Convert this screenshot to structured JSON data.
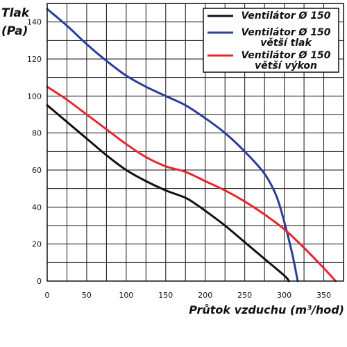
{
  "chart_data": {
    "type": "line",
    "ylabel_line1": "Tlak",
    "ylabel_line2": "(Pa)",
    "xlabel": "Průtok vzduchu (m³/hod)",
    "xlim": [
      0,
      375
    ],
    "ylim": [
      0,
      150
    ],
    "x_ticks": [
      "0",
      "50",
      "100",
      "150",
      "200",
      "250",
      "300",
      "350"
    ],
    "y_ticks": [
      "0",
      "20",
      "40",
      "60",
      "80",
      "100",
      "120",
      "140"
    ],
    "grid": true,
    "legend_position": "top-right",
    "series": [
      {
        "name_lines": [
          "Ventilátor Ø 150"
        ],
        "color": "#111111",
        "points": [
          [
            0,
            95
          ],
          [
            25,
            86
          ],
          [
            50,
            77
          ],
          [
            75,
            68
          ],
          [
            100,
            60
          ],
          [
            125,
            54
          ],
          [
            150,
            49
          ],
          [
            175,
            45
          ],
          [
            190,
            41
          ],
          [
            200,
            38
          ],
          [
            225,
            30
          ],
          [
            250,
            21
          ],
          [
            275,
            12
          ],
          [
            300,
            3
          ],
          [
            306,
            0
          ]
        ]
      },
      {
        "name_lines": [
          "Ventilátor Ø 150",
          "větší tlak"
        ],
        "color": "#2a3d9a",
        "points": [
          [
            0,
            147
          ],
          [
            25,
            138
          ],
          [
            50,
            128
          ],
          [
            75,
            119
          ],
          [
            100,
            111
          ],
          [
            125,
            105
          ],
          [
            150,
            100
          ],
          [
            175,
            95
          ],
          [
            200,
            88
          ],
          [
            225,
            80
          ],
          [
            250,
            70
          ],
          [
            275,
            58
          ],
          [
            290,
            46
          ],
          [
            300,
            32
          ],
          [
            310,
            15
          ],
          [
            317,
            0
          ]
        ]
      },
      {
        "name_lines": [
          "Ventilátor Ø 150",
          "větší výkon"
        ],
        "color": "#e8262b",
        "points": [
          [
            0,
            105
          ],
          [
            25,
            98
          ],
          [
            50,
            90
          ],
          [
            75,
            82
          ],
          [
            100,
            74
          ],
          [
            125,
            67
          ],
          [
            150,
            62
          ],
          [
            175,
            59
          ],
          [
            200,
            54
          ],
          [
            225,
            49
          ],
          [
            250,
            43
          ],
          [
            275,
            36
          ],
          [
            300,
            28
          ],
          [
            325,
            18
          ],
          [
            350,
            7
          ],
          [
            365,
            0
          ]
        ]
      }
    ]
  }
}
